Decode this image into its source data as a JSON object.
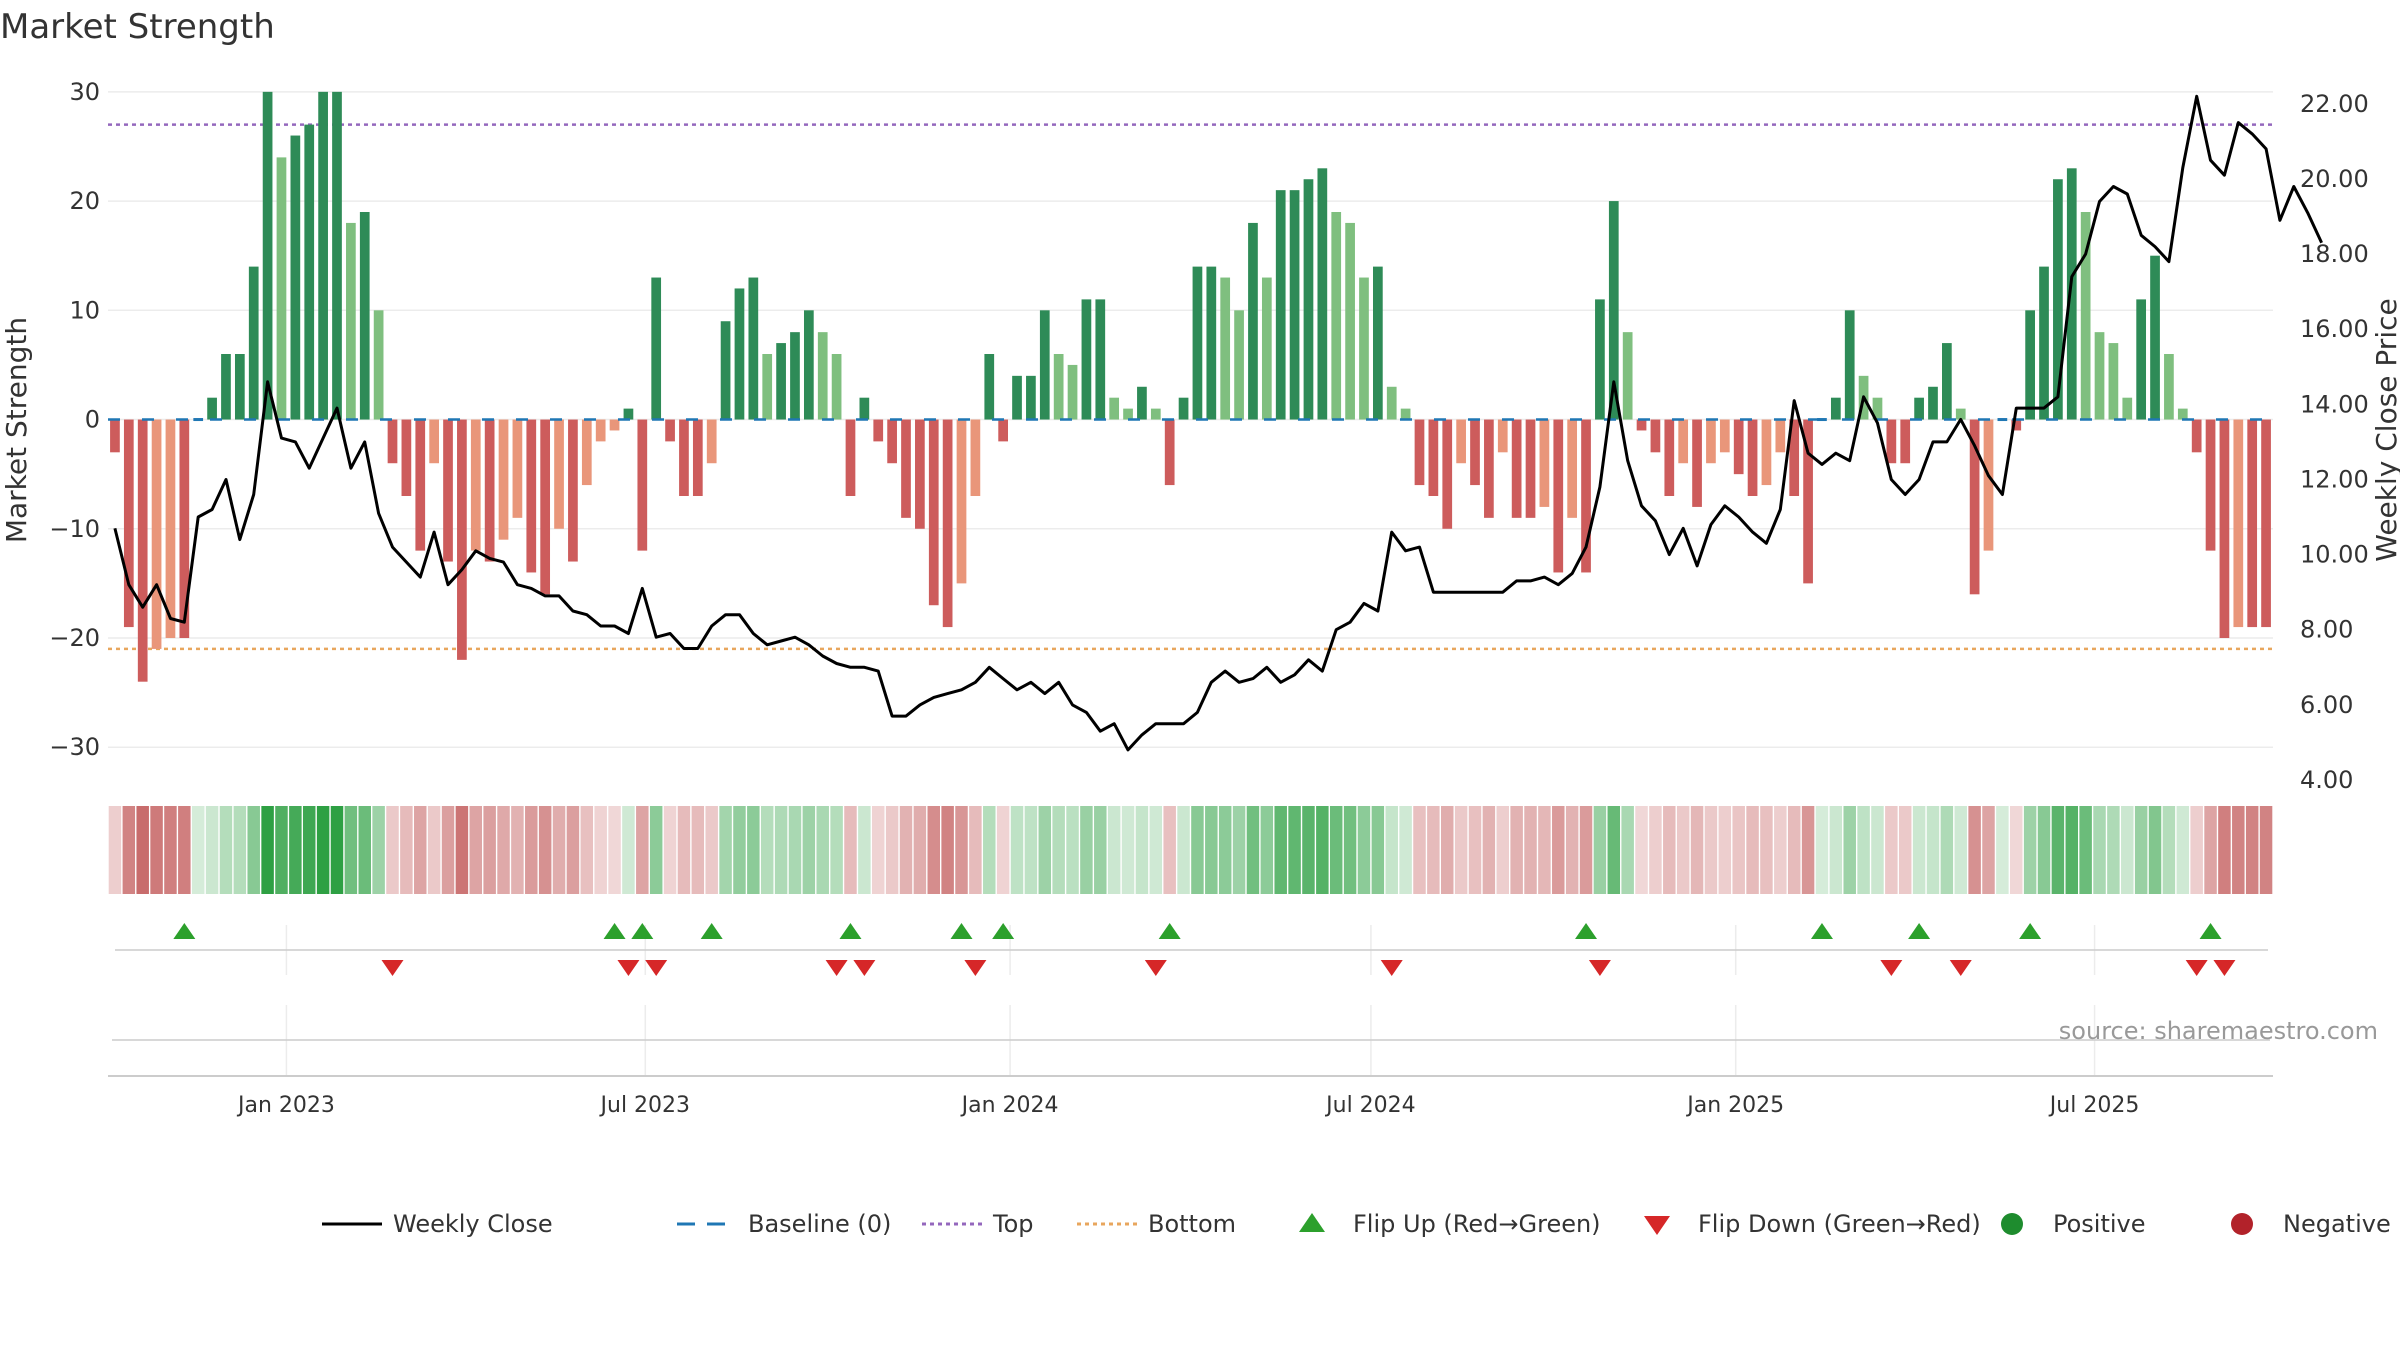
{
  "chart_data": {
    "type": "bar",
    "title": "Market Strength",
    "ylabel": "Market Strength",
    "y2label": "Weekly Close Price",
    "ylim": [
      -33,
      32
    ],
    "yticks": [
      30,
      20,
      10,
      0,
      -10,
      -20,
      -30
    ],
    "y2lim": [
      4,
      22.9
    ],
    "y2ticks": [
      "22.00",
      "20.00",
      "18.00",
      "16.00",
      "14.00",
      "12.00",
      "10.00",
      "8.00",
      "6.00",
      "4.00"
    ],
    "top_level": 27,
    "bottom_level": -21,
    "x_start": "2022-10-03",
    "x_end": "2025-09-29",
    "xticks": [
      {
        "date": "2023-01-01",
        "label": "Jan 2023"
      },
      {
        "date": "2023-07-01",
        "label": "Jul 2023"
      },
      {
        "date": "2024-01-01",
        "label": "Jan 2024"
      },
      {
        "date": "2024-07-01",
        "label": "Jul 2024"
      },
      {
        "date": "2025-01-01",
        "label": "Jan 2025"
      },
      {
        "date": "2025-07-01",
        "label": "Jul 2025"
      }
    ],
    "strength": [
      -3,
      -19,
      -24,
      -21,
      -20,
      -20,
      0,
      2,
      6,
      6,
      14,
      30,
      24,
      26,
      27,
      30,
      30,
      18,
      19,
      10,
      -4,
      -7,
      -12,
      -4,
      -13,
      -22,
      -12,
      -13,
      -11,
      -9,
      -14,
      -16,
      -10,
      -13,
      -6,
      -2,
      -1,
      1,
      -12,
      13,
      -2,
      -7,
      -7,
      -4,
      9,
      12,
      13,
      6,
      7,
      8,
      10,
      8,
      6,
      -7,
      2,
      -2,
      -4,
      -9,
      -10,
      -17,
      -19,
      -15,
      -7,
      6,
      -2,
      4,
      4,
      10,
      6,
      5,
      11,
      11,
      2,
      1,
      3,
      1,
      -6,
      2,
      14,
      14,
      13,
      10,
      18,
      13,
      21,
      21,
      22,
      23,
      19,
      18,
      13,
      14,
      3,
      1,
      -6,
      -7,
      -10,
      -4,
      -6,
      -9,
      -3,
      -9,
      -9,
      -8,
      -14,
      -9,
      -14,
      11,
      20,
      8,
      -1,
      -3,
      -7,
      -4,
      -8,
      -4,
      -3,
      -5,
      -7,
      -6,
      -3,
      -7,
      -15,
      0,
      2,
      10,
      4,
      2,
      -4,
      -4,
      2,
      3,
      7,
      1,
      -16,
      -12,
      0,
      -1,
      10,
      14,
      22,
      23,
      19,
      8,
      7,
      2,
      11,
      15,
      6,
      1,
      -3,
      -12,
      -20,
      -19,
      -19,
      -19
    ],
    "close": [
      10.7,
      9.2,
      8.6,
      9.2,
      8.3,
      8.2,
      11.0,
      11.2,
      12.0,
      10.4,
      11.6,
      14.6,
      13.1,
      13.0,
      12.3,
      13.1,
      13.9,
      12.3,
      13.0,
      11.1,
      10.2,
      9.8,
      9.4,
      10.6,
      9.2,
      9.6,
      10.1,
      9.9,
      9.8,
      9.2,
      9.1,
      8.9,
      8.9,
      8.5,
      8.4,
      8.1,
      8.1,
      7.9,
      9.1,
      7.8,
      7.9,
      7.5,
      7.5,
      8.1,
      8.4,
      8.4,
      7.9,
      7.6,
      7.7,
      7.8,
      7.6,
      7.3,
      7.1,
      7.0,
      7.0,
      6.9,
      5.7,
      5.7,
      6.0,
      6.2,
      6.3,
      6.4,
      6.6,
      7.0,
      6.7,
      6.4,
      6.6,
      6.3,
      6.6,
      6.0,
      5.8,
      5.3,
      5.5,
      4.8,
      5.2,
      5.5,
      5.5,
      5.5,
      5.8,
      6.6,
      6.9,
      6.6,
      6.7,
      7.0,
      6.6,
      6.8,
      7.2,
      6.9,
      8.0,
      8.2,
      8.7,
      8.5,
      10.6,
      10.1,
      10.2,
      9.0,
      9.0,
      9.0,
      9.0,
      9.0,
      9.0,
      9.3,
      9.3,
      9.4,
      9.2,
      9.5,
      10.2,
      11.8,
      14.6,
      12.5,
      11.3,
      10.9,
      10.0,
      10.7,
      9.7,
      10.8,
      11.3,
      11.0,
      10.6,
      10.3,
      11.2,
      14.1,
      12.7,
      12.4,
      12.7,
      12.5,
      14.2,
      13.5,
      12.0,
      11.6,
      12.0,
      13.0,
      13.0,
      13.6,
      12.9,
      12.1,
      11.6,
      13.9,
      13.9,
      13.9,
      14.2,
      17.4,
      18.0,
      19.4,
      19.8,
      19.6,
      18.5,
      18.2,
      17.8,
      20.3,
      22.2,
      20.5,
      20.1,
      21.5,
      21.2,
      20.8,
      18.9,
      19.8,
      19.1,
      18.3
    ],
    "flip_up": [
      5,
      36,
      38,
      43,
      53,
      61,
      64,
      76,
      106,
      123,
      130,
      138,
      151
    ],
    "flip_down": [
      20,
      37,
      39,
      52,
      54,
      62,
      75,
      92,
      107,
      128,
      133,
      150,
      152
    ],
    "legend": [
      {
        "type": "line",
        "label": "Weekly Close",
        "color": "#000000"
      },
      {
        "type": "dash",
        "label": "Baseline (0)",
        "color": "#1f77b4"
      },
      {
        "type": "dot",
        "label": "Top",
        "color": "#9467bd"
      },
      {
        "type": "dot",
        "label": "Bottom",
        "color": "#e8a65d"
      },
      {
        "type": "tri-up",
        "label": "Flip Up (Red→Green)",
        "color": "#2ca02c"
      },
      {
        "type": "tri-down",
        "label": "Flip Down (Green→Red)",
        "color": "#d62728"
      },
      {
        "type": "circle",
        "label": "Positive",
        "color": "#1e8c2e"
      },
      {
        "type": "circle",
        "label": "Negative",
        "color": "#b2222a"
      }
    ],
    "source": "source: sharemaestro.com"
  },
  "colors": {
    "pos_strong": "#2e8b57",
    "pos_weak": "#7fbf7f",
    "neg_strong": "#cd5c5c",
    "neg_weak": "#e9967a",
    "top_line": "#9467bd",
    "bottom_line": "#e8a65d",
    "baseline": "#1f77b4"
  }
}
